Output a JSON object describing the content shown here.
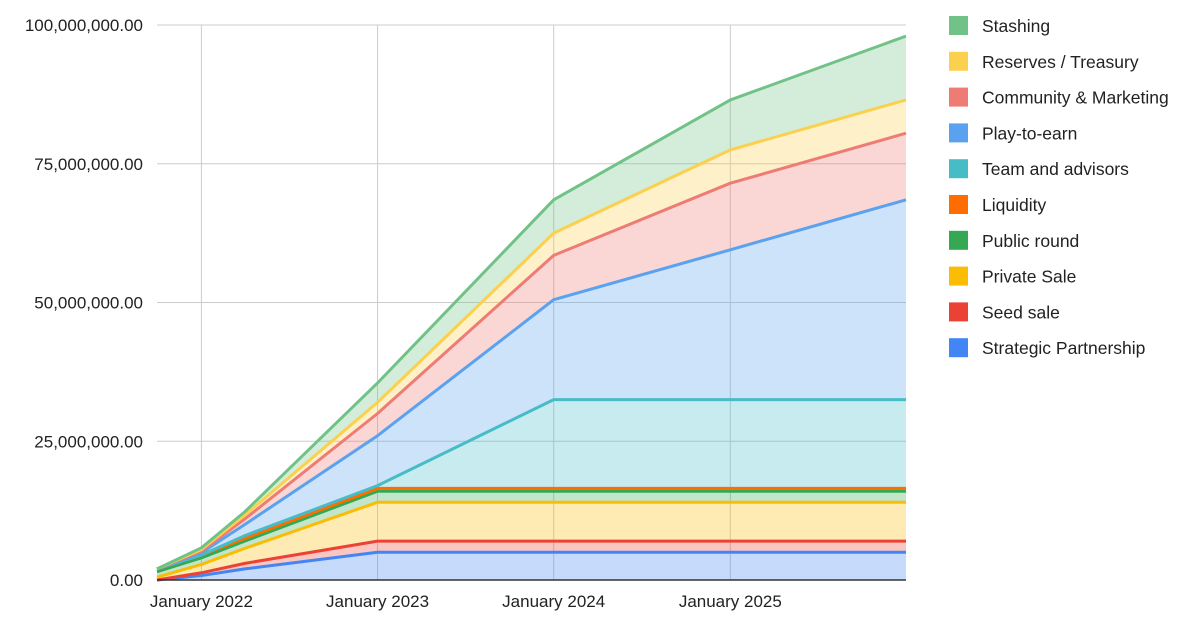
{
  "chart_data": {
    "type": "area",
    "stacked": true,
    "x": [
      "2021-10-01",
      "2022-01-01",
      "2022-04-01",
      "2023-01-01",
      "2024-01-01",
      "2025-01-01",
      "2025-12-31"
    ],
    "xticks": [
      {
        "date": "2022-01-01",
        "label": "January 2022"
      },
      {
        "date": "2023-01-01",
        "label": "January 2023"
      },
      {
        "date": "2024-01-01",
        "label": "January 2024"
      },
      {
        "date": "2025-01-01",
        "label": "January 2025"
      }
    ],
    "ylim": [
      0,
      100000000
    ],
    "yticks": [
      {
        "value": 0,
        "label": "0.00"
      },
      {
        "value": 25000000,
        "label": "25,000,000.00"
      },
      {
        "value": 50000000,
        "label": "50,000,000.00"
      },
      {
        "value": 75000000,
        "label": "75,000,000.00"
      },
      {
        "value": 100000000,
        "label": "100,000,000.00"
      }
    ],
    "grid": true,
    "legend_position": "right",
    "series": [
      {
        "name": "Strategic Partnership",
        "color": "#4285f4",
        "values": [
          0,
          800000,
          2000000,
          5000000,
          5000000,
          5000000,
          5000000
        ]
      },
      {
        "name": "Seed sale",
        "color": "#ea4335",
        "values": [
          0,
          500000,
          1000000,
          2000000,
          2000000,
          2000000,
          2000000
        ]
      },
      {
        "name": "Private Sale",
        "color": "#fbbc04",
        "values": [
          500000,
          1500000,
          2700000,
          7000000,
          7000000,
          7000000,
          7000000
        ]
      },
      {
        "name": "Public round",
        "color": "#34a853",
        "values": [
          1000000,
          1200000,
          1300000,
          2000000,
          2000000,
          2000000,
          2000000
        ]
      },
      {
        "name": "Liquidity",
        "color": "#ff6d01",
        "values": [
          500000,
          500000,
          500000,
          500000,
          500000,
          500000,
          500000
        ]
      },
      {
        "name": "Team and advisors",
        "color": "#46bdc6",
        "values": [
          0,
          0,
          500000,
          500000,
          16000000,
          16000000,
          16000000
        ]
      },
      {
        "name": "Play-to-earn",
        "color": "#5aa2f0",
        "values": [
          0,
          400000,
          2000000,
          9000000,
          18000000,
          27000000,
          36000000
        ]
      },
      {
        "name": "Community & Marketing",
        "color": "#ee7b74",
        "values": [
          0,
          300000,
          1000000,
          4000000,
          8000000,
          12000000,
          12000000
        ]
      },
      {
        "name": "Reserves / Treasury",
        "color": "#fcd04f",
        "values": [
          0,
          300000,
          700000,
          2000000,
          4000000,
          6000000,
          6000000
        ]
      },
      {
        "name": "Stashing",
        "color": "#71c287",
        "values": [
          0,
          300000,
          600000,
          3500000,
          6000000,
          9000000,
          11500000
        ]
      }
    ]
  }
}
